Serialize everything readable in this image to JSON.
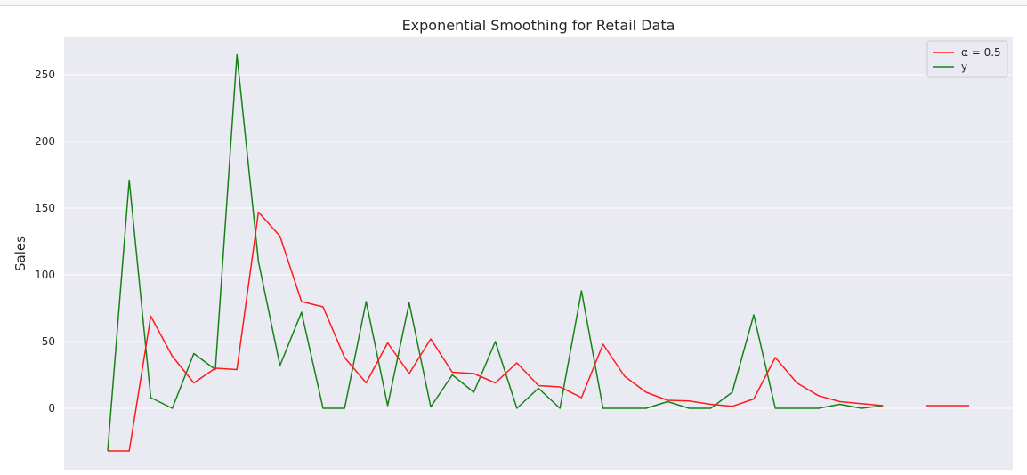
{
  "chart_data": {
    "type": "line",
    "title": "Exponential Smoothing for Retail Data",
    "xlabel": "",
    "ylabel": "Sales",
    "ylim": [
      -46,
      278
    ],
    "yticks": [
      0,
      50,
      100,
      150,
      200,
      250
    ],
    "grid": true,
    "legend_position": "top-right",
    "x": [
      0,
      1,
      2,
      3,
      4,
      5,
      6,
      7,
      8,
      9,
      10,
      11,
      12,
      13,
      14,
      15,
      16,
      17,
      18,
      19,
      20,
      21,
      22,
      23,
      24,
      25,
      26,
      27,
      28,
      29,
      30,
      31,
      32,
      33,
      34,
      35,
      36,
      37,
      38,
      39,
      40
    ],
    "series": [
      {
        "name": "α = 0.5",
        "color": "#ff1a1a",
        "values": [
          -32,
          -32,
          69,
          39,
          19,
          30,
          29,
          147,
          129,
          80,
          76,
          38,
          19,
          49,
          26,
          52,
          27,
          26,
          19,
          34,
          17,
          16,
          8,
          48,
          24,
          12,
          6,
          5.5,
          3,
          1.5,
          7,
          38,
          19,
          9.5,
          5,
          3.5,
          2,
          null,
          2,
          2,
          2
        ]
      },
      {
        "name": "y",
        "color": "#168216",
        "values": [
          -32,
          171,
          8,
          0,
          41,
          29,
          265,
          110,
          32,
          72,
          0,
          0,
          80,
          2,
          79,
          1,
          25,
          12,
          50,
          0,
          15,
          0,
          88,
          0,
          0,
          0,
          5,
          0,
          0,
          12,
          70,
          0,
          0,
          0,
          3,
          0,
          2,
          null,
          null,
          null,
          null
        ]
      }
    ]
  }
}
